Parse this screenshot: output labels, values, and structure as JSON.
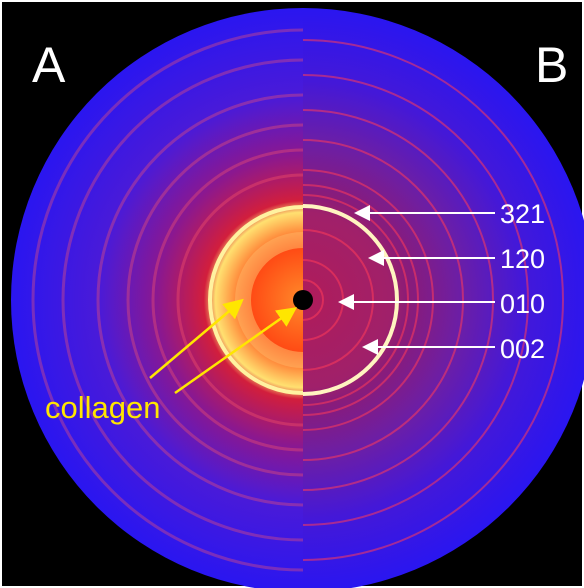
{
  "panels": {
    "left": "A",
    "right": "B"
  },
  "reflections": [
    {
      "label": "321"
    },
    {
      "label": "120"
    },
    {
      "label": "010"
    },
    {
      "label": "002"
    }
  ],
  "annotation": {
    "label": "collagen"
  }
}
